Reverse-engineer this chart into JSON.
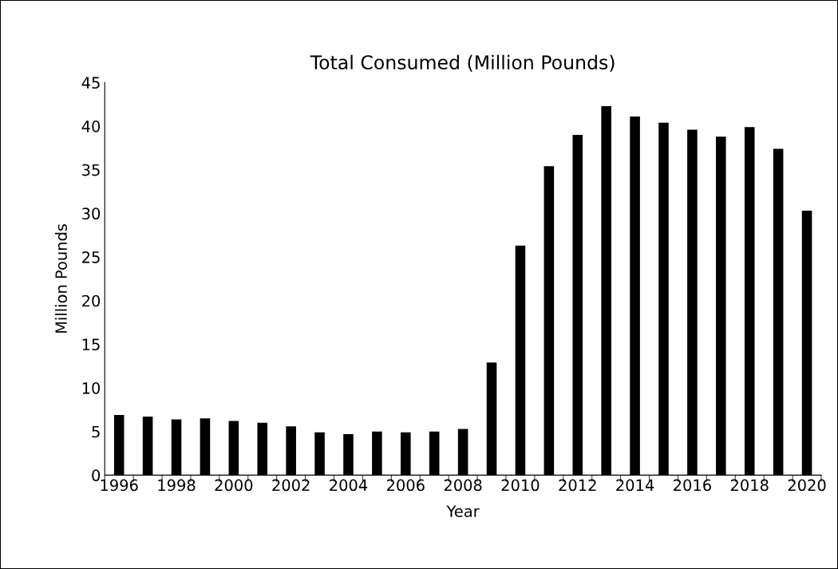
{
  "chart_data": {
    "type": "bar",
    "title": "Total Consumed (Million Pounds)",
    "xlabel": "Year",
    "ylabel": "Million Pounds",
    "categories": [
      "1996",
      null,
      "1998",
      null,
      "2000",
      null,
      "2002",
      null,
      "2004",
      null,
      "2006",
      null,
      "2008",
      null,
      "2010",
      null,
      "2012",
      null,
      "2014",
      null,
      "2016",
      null,
      "2018",
      null,
      "2020"
    ],
    "values": [
      6.9,
      6.7,
      6.4,
      6.5,
      6.2,
      6.0,
      5.6,
      4.9,
      4.7,
      5.0,
      4.9,
      5.0,
      5.3,
      12.9,
      26.3,
      35.4,
      39.0,
      42.3,
      41.1,
      40.4,
      39.6,
      38.8,
      39.9,
      37.4,
      30.3
    ],
    "color": "#000000",
    "ylim": [
      0,
      45
    ],
    "yticks": [
      0,
      5,
      10,
      15,
      20,
      25,
      30,
      35,
      40,
      45
    ],
    "grid": false,
    "legend": false
  }
}
